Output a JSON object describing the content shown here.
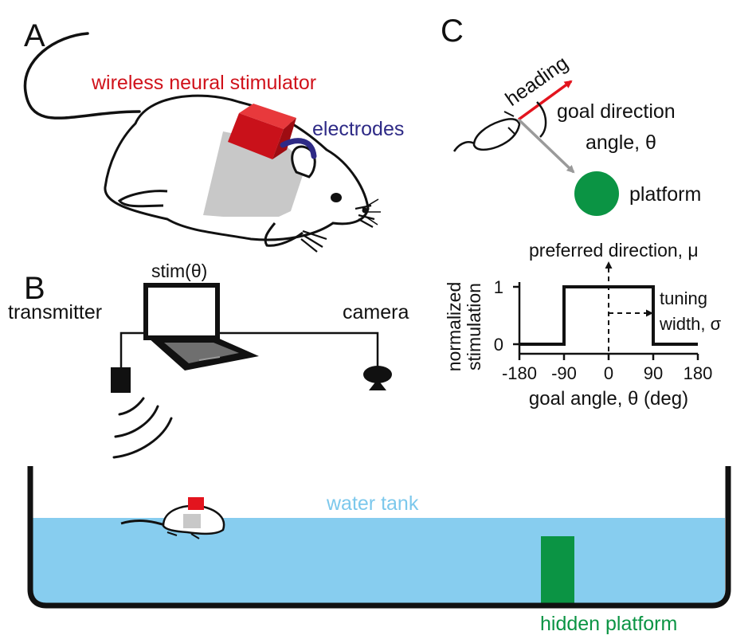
{
  "panels": {
    "a": {
      "letter": "A",
      "stimulator_label": "wireless neural stimulator",
      "electrodes_label": "electrodes"
    },
    "b": {
      "letter": "B",
      "stim_label": "stim(θ)",
      "transmitter_label": "transmitter",
      "camera_label": "camera",
      "tank_label": "water tank",
      "platform_label": "hidden platform"
    },
    "c": {
      "letter": "C",
      "heading_label": "heading",
      "goal_direction_line1": "goal direction",
      "goal_direction_line2": "angle, θ",
      "platform_label": "platform"
    }
  },
  "chart_data": {
    "type": "line",
    "ylabel_line1": "normalized",
    "ylabel_line2": "stimulation",
    "xlabel": "goal angle, θ (deg)",
    "x_ticks": [
      "-180",
      "-90",
      "0",
      "90",
      "180"
    ],
    "y_ticks": [
      "0",
      "1"
    ],
    "xlim": [
      -180,
      180
    ],
    "ylim": [
      0,
      1
    ],
    "x": [
      -180,
      -90,
      -90,
      90,
      90,
      180
    ],
    "y": [
      0,
      0,
      1,
      1,
      0,
      0
    ],
    "annotations": {
      "preferred": "preferred direction, μ",
      "tuning_line1": "tuning",
      "tuning_line2": "width, σ"
    }
  },
  "colors": {
    "stimulator": "#d0121b",
    "electrodes": "#2e2a86",
    "water": "#87cdef",
    "water_label": "#7cc8ec",
    "platform": "#0b9444",
    "body_patch": "#c8c8c8",
    "heading_arrow": "#e3141e",
    "goal_arrow": "#9a9a9a"
  }
}
